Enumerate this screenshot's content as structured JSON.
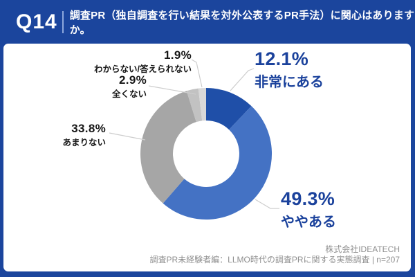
{
  "page": {
    "accent_blue": "#1b459d",
    "panel_bg": "#ffffff"
  },
  "header": {
    "q_label": "Q14",
    "question": "調査PR（独自調査を行い結果を対外公表するPR手法）に関心はありますか。"
  },
  "footer": {
    "company": "株式会社IDEATECH",
    "source": "調査PR未経験者編：LLMO時代の調査PRに関する実態調査 | n=207"
  },
  "chart_data": {
    "type": "pie",
    "variant": "donut",
    "title": "調査PR（独自調査を行い結果を対外公表するPR手法）に関心はありますか。",
    "categories": [
      "非常にある",
      "ややある",
      "あまりない",
      "全くない",
      "わからない/答えられない"
    ],
    "values": [
      12.1,
      49.3,
      33.8,
      2.9,
      1.9
    ],
    "unit": "%",
    "colors": [
      "#1f4fa8",
      "#4472c4",
      "#a6a6a6",
      "#c2c2c2",
      "#d8d8d8"
    ],
    "start_angle_deg": 0,
    "direction": "clockwise",
    "legend_position": "none",
    "sample_size": "n=207",
    "display_labels": [
      {
        "pct": "12.1%",
        "name": "非常にある"
      },
      {
        "pct": "49.3%",
        "name": "ややある"
      },
      {
        "pct": "33.8%",
        "name": "あまりない"
      },
      {
        "pct": "2.9%",
        "name": "全くない"
      },
      {
        "pct": "1.9%",
        "name": "わからない/答えられない"
      }
    ],
    "label_colors": {
      "major": "#1b429c",
      "minor": "#161616"
    }
  }
}
